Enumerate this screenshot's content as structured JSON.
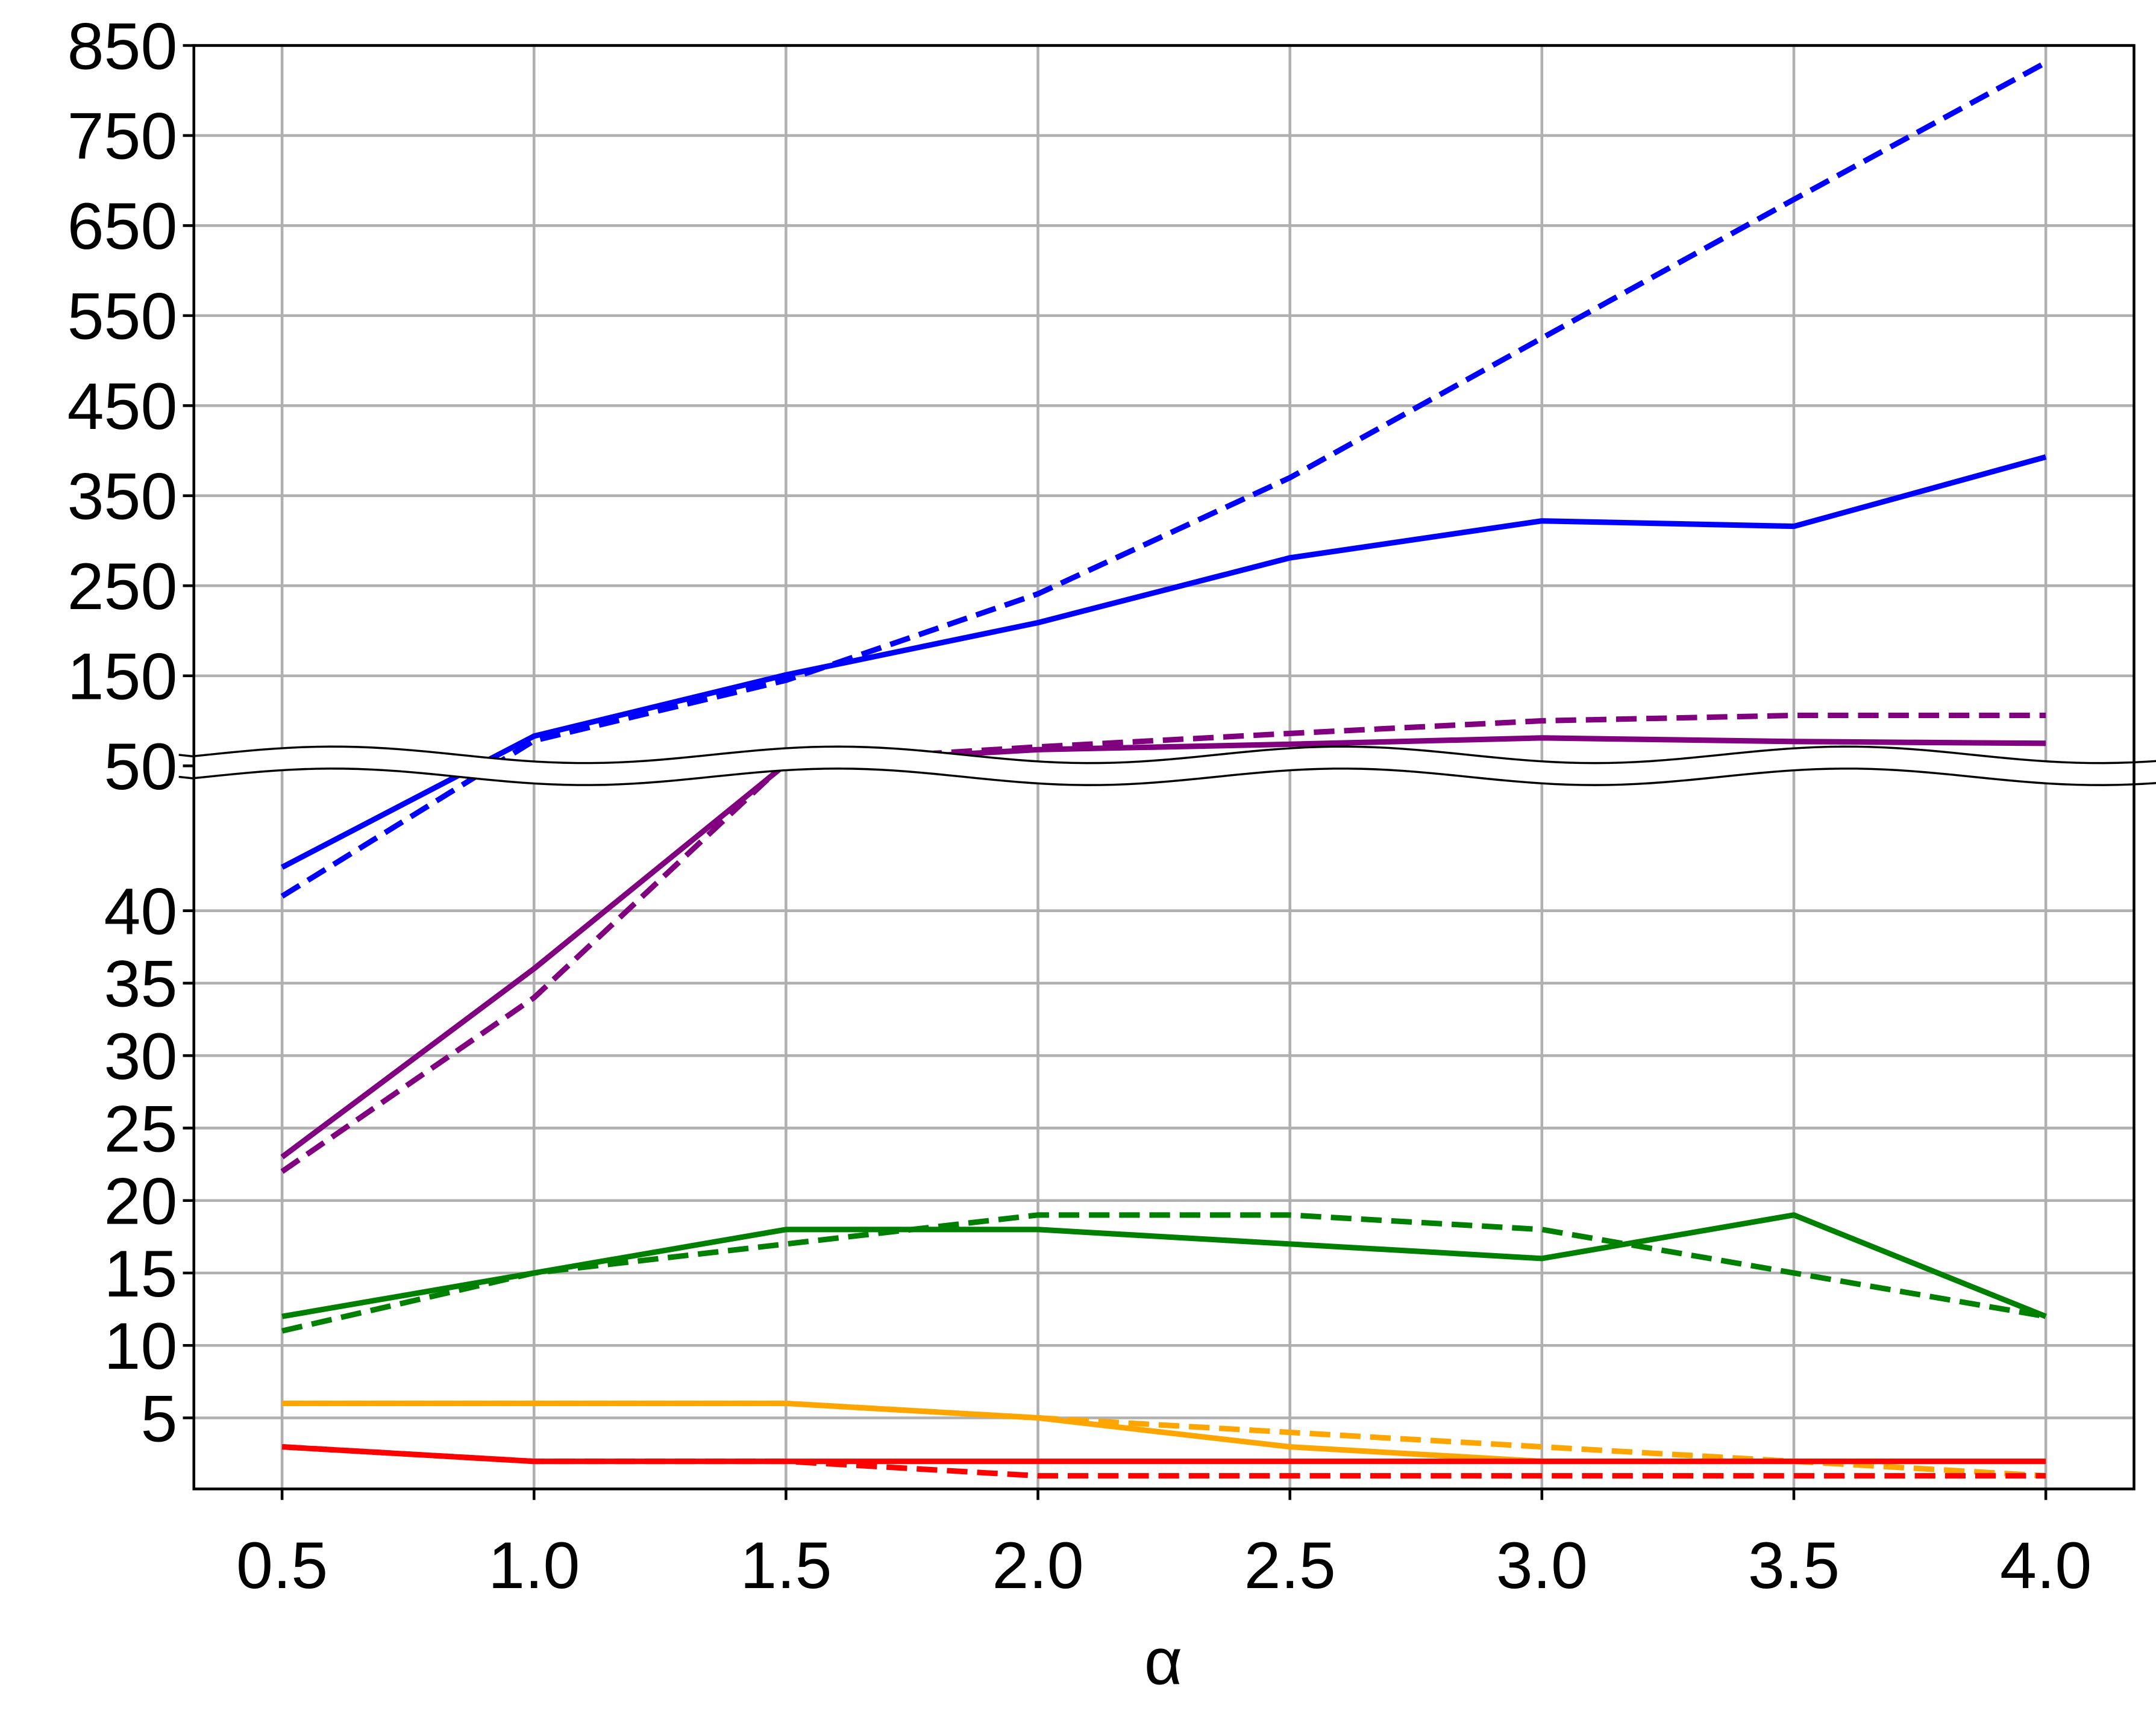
{
  "chart_data": {
    "type": "line",
    "xlabel": "α",
    "x": [
      0.5,
      1.0,
      1.5,
      2.0,
      2.5,
      3.0,
      3.5,
      4.0
    ],
    "xlim": [
      0.325,
      4.175
    ],
    "xticks": [
      0.5,
      {
        "value": 1,
        "label": "1.0"
      },
      1.5,
      {
        "value": 2,
        "label": "2.0"
      },
      2.5,
      {
        "value": 3,
        "label": "3.0"
      },
      3.5,
      {
        "value": 4,
        "label": "4.0"
      }
    ],
    "y_segments": [
      {
        "ylim": [
          0,
          50
        ],
        "yticks": [
          5,
          10,
          15,
          20,
          25,
          30,
          35,
          40,
          50
        ]
      },
      {
        "ylim": [
          50,
          850
        ],
        "yticks": [
          150,
          250,
          350,
          450,
          550,
          650,
          750,
          850
        ]
      }
    ],
    "grid": true,
    "series": [
      {
        "color": "#0000ff",
        "dashed": false,
        "values": [
          43,
          83,
          151,
          209,
          281,
          322,
          316,
          393
        ]
      },
      {
        "color": "#0000ff",
        "dashed": true,
        "values": [
          41,
          78,
          145,
          241,
          370,
          525,
          679,
          831
        ]
      },
      {
        "color": "#800080",
        "dashed": false,
        "values": [
          23,
          36,
          52,
          68,
          74,
          81,
          77,
          75
        ]
      },
      {
        "color": "#800080",
        "dashed": true,
        "values": [
          22,
          34,
          54,
          71,
          86,
          100,
          106,
          106
        ]
      },
      {
        "color": "#008000",
        "dashed": false,
        "values": [
          12,
          15,
          18,
          18,
          17,
          16,
          19,
          12
        ]
      },
      {
        "color": "#008000",
        "dashed": true,
        "values": [
          11,
          15,
          17,
          19,
          19,
          18,
          15,
          12
        ]
      },
      {
        "color": "#ffa500",
        "dashed": false,
        "values": [
          6,
          6,
          6,
          5,
          3,
          2,
          2,
          2
        ]
      },
      {
        "color": "#ffa500",
        "dashed": true,
        "values": [
          6,
          6,
          6,
          5,
          4,
          3,
          2,
          1
        ]
      },
      {
        "color": "#ff0000",
        "dashed": false,
        "values": [
          3,
          2,
          2,
          2,
          2,
          2,
          2,
          2
        ]
      },
      {
        "color": "#ff0000",
        "dashed": true,
        "values": [
          3,
          2,
          2,
          1,
          1,
          1,
          1,
          1
        ]
      }
    ]
  }
}
